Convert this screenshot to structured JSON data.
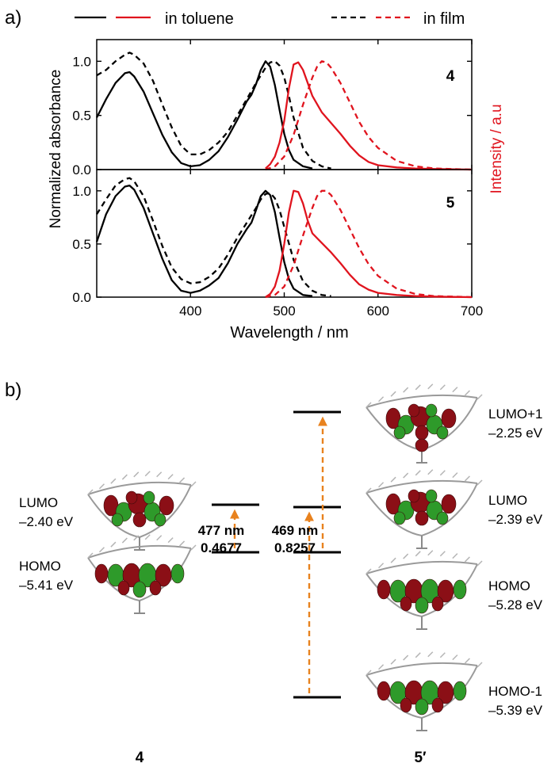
{
  "panel_a": {
    "label": "a)",
    "legend": {
      "toluene": "in toluene",
      "film": "in film"
    },
    "compound_top": "4",
    "compound_bottom": "5",
    "ylabel_left": "Normalized absorbance",
    "ylabel_right": "Intensity / a.u",
    "xlabel": "Wavelength / nm"
  },
  "panel_b": {
    "label": "b)",
    "compound_left": "4",
    "compound_right": "5′",
    "left_levels": {
      "lumo": {
        "name": "LUMO",
        "energy": "–2.40 eV"
      },
      "homo": {
        "name": "HOMO",
        "energy": "–5.41 eV"
      }
    },
    "left_transition": {
      "wavelength": "477 nm",
      "strength": "0.4677"
    },
    "right_levels": {
      "lumo1": {
        "name": "LUMO+1",
        "energy": "–2.25 eV"
      },
      "lumo": {
        "name": "LUMO",
        "energy": "–2.39 eV"
      },
      "homo": {
        "name": "HOMO",
        "energy": "–5.28 eV"
      },
      "homo1": {
        "name": "HOMO-1",
        "energy": "–5.39 eV"
      }
    },
    "right_transition": {
      "wavelength": "469 nm",
      "strength": "0.8257"
    }
  },
  "colors": {
    "absorbance": "#000000",
    "emission": "#e0141e",
    "arrow": "#e8821e",
    "lobe_red": "#8b0f16",
    "lobe_green": "#2e9a2a"
  },
  "chart_data": [
    {
      "type": "line",
      "title": "4",
      "xlabel": "Wavelength / nm",
      "ylabel": "Normalized absorbance",
      "y2label": "Intensity / a.u",
      "xlim": [
        300,
        700
      ],
      "ylim": [
        0,
        1.2
      ],
      "xticks": [
        400,
        500,
        600,
        700
      ],
      "yticks": [
        0.0,
        0.5,
        1.0
      ],
      "series": [
        {
          "name": "absorbance in toluene",
          "color": "black",
          "style": "solid",
          "x": [
            300,
            310,
            320,
            330,
            335,
            340,
            350,
            360,
            370,
            380,
            390,
            400,
            410,
            420,
            430,
            440,
            450,
            460,
            465,
            470,
            475,
            480,
            485,
            490,
            495,
            500,
            505,
            510,
            520,
            530
          ],
          "y": [
            0.48,
            0.65,
            0.8,
            0.89,
            0.9,
            0.86,
            0.72,
            0.52,
            0.32,
            0.16,
            0.06,
            0.03,
            0.04,
            0.09,
            0.17,
            0.3,
            0.46,
            0.63,
            0.69,
            0.79,
            0.92,
            1.0,
            0.95,
            0.78,
            0.55,
            0.33,
            0.18,
            0.09,
            0.03,
            0.01
          ]
        },
        {
          "name": "absorbance in film",
          "color": "black",
          "style": "dashed",
          "x": [
            300,
            310,
            320,
            330,
            335,
            340,
            350,
            360,
            370,
            380,
            390,
            400,
            410,
            420,
            430,
            440,
            450,
            460,
            470,
            480,
            485,
            490,
            495,
            500,
            505,
            510,
            520,
            530,
            540,
            550
          ],
          "y": [
            0.87,
            0.92,
            1.0,
            1.06,
            1.08,
            1.06,
            0.98,
            0.82,
            0.6,
            0.39,
            0.22,
            0.14,
            0.14,
            0.18,
            0.25,
            0.35,
            0.5,
            0.65,
            0.8,
            0.94,
            0.99,
            1.0,
            0.96,
            0.85,
            0.68,
            0.48,
            0.2,
            0.08,
            0.03,
            0.01
          ]
        },
        {
          "name": "emission in toluene",
          "color": "red",
          "style": "solid",
          "x": [
            480,
            485,
            490,
            495,
            500,
            505,
            510,
            515,
            520,
            525,
            530,
            540,
            550,
            560,
            570,
            580,
            590,
            600,
            620,
            640,
            660,
            680,
            700
          ],
          "y": [
            0.01,
            0.05,
            0.12,
            0.25,
            0.45,
            0.75,
            0.97,
            0.99,
            0.92,
            0.8,
            0.68,
            0.53,
            0.43,
            0.33,
            0.22,
            0.13,
            0.07,
            0.04,
            0.02,
            0.01,
            0.005,
            0.002,
            0.0
          ]
        },
        {
          "name": "emission in film",
          "color": "red",
          "style": "dashed",
          "x": [
            480,
            490,
            500,
            510,
            520,
            530,
            535,
            540,
            545,
            550,
            560,
            570,
            580,
            590,
            600,
            620,
            640,
            660,
            680,
            700
          ],
          "y": [
            0.0,
            0.03,
            0.12,
            0.32,
            0.6,
            0.85,
            0.95,
            1.0,
            0.99,
            0.94,
            0.8,
            0.62,
            0.44,
            0.3,
            0.2,
            0.08,
            0.03,
            0.01,
            0.005,
            0.0
          ]
        }
      ]
    },
    {
      "type": "line",
      "title": "5",
      "xlabel": "Wavelength / nm",
      "ylabel": "Normalized absorbance",
      "y2label": "Intensity / a.u",
      "xlim": [
        300,
        700
      ],
      "ylim": [
        0,
        1.2
      ],
      "xticks": [
        400,
        500,
        600,
        700
      ],
      "yticks": [
        0.0,
        0.5,
        1.0
      ],
      "series": [
        {
          "name": "absorbance in toluene",
          "color": "black",
          "style": "solid",
          "x": [
            300,
            310,
            320,
            330,
            335,
            340,
            350,
            360,
            370,
            380,
            390,
            400,
            410,
            420,
            430,
            440,
            450,
            460,
            465,
            470,
            475,
            480,
            485,
            490,
            495,
            500,
            505,
            510,
            520,
            530
          ],
          "y": [
            0.52,
            0.78,
            0.95,
            1.04,
            1.05,
            1.01,
            0.84,
            0.6,
            0.36,
            0.16,
            0.06,
            0.04,
            0.06,
            0.11,
            0.18,
            0.32,
            0.5,
            0.64,
            0.7,
            0.82,
            0.95,
            1.0,
            0.96,
            0.8,
            0.56,
            0.33,
            0.17,
            0.08,
            0.02,
            0.01
          ]
        },
        {
          "name": "absorbance in film",
          "color": "black",
          "style": "dashed",
          "x": [
            300,
            310,
            320,
            330,
            335,
            340,
            350,
            360,
            370,
            380,
            390,
            400,
            410,
            420,
            430,
            440,
            450,
            460,
            470,
            475,
            480,
            485,
            490,
            495,
            500,
            510,
            520,
            530,
            540,
            550
          ],
          "y": [
            0.78,
            0.92,
            1.05,
            1.11,
            1.12,
            1.09,
            0.95,
            0.72,
            0.48,
            0.28,
            0.17,
            0.13,
            0.14,
            0.19,
            0.27,
            0.4,
            0.56,
            0.7,
            0.84,
            0.92,
            0.97,
            0.98,
            0.93,
            0.82,
            0.66,
            0.35,
            0.15,
            0.06,
            0.02,
            0.01
          ]
        },
        {
          "name": "emission in toluene",
          "color": "red",
          "style": "solid",
          "x": [
            480,
            485,
            490,
            495,
            500,
            505,
            510,
            515,
            520,
            525,
            530,
            540,
            550,
            560,
            570,
            580,
            590,
            600,
            620,
            640,
            660,
            680,
            700
          ],
          "y": [
            0.0,
            0.03,
            0.1,
            0.25,
            0.5,
            0.8,
            1.0,
            0.99,
            0.88,
            0.72,
            0.6,
            0.51,
            0.42,
            0.32,
            0.21,
            0.12,
            0.07,
            0.04,
            0.02,
            0.01,
            0.005,
            0.002,
            0.0
          ]
        },
        {
          "name": "emission in film",
          "color": "red",
          "style": "dashed",
          "x": [
            480,
            490,
            500,
            510,
            520,
            530,
            535,
            540,
            545,
            550,
            560,
            570,
            580,
            590,
            600,
            620,
            640,
            660,
            680,
            700
          ],
          "y": [
            0.0,
            0.02,
            0.1,
            0.3,
            0.58,
            0.84,
            0.95,
            1.0,
            1.0,
            0.96,
            0.82,
            0.64,
            0.46,
            0.31,
            0.2,
            0.08,
            0.03,
            0.01,
            0.005,
            0.0
          ]
        }
      ]
    }
  ]
}
